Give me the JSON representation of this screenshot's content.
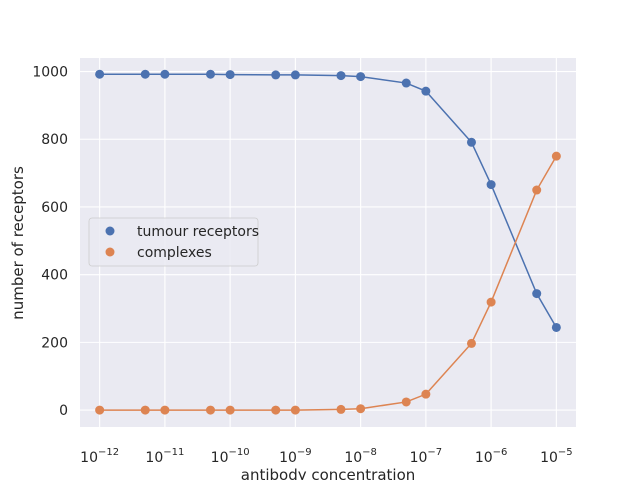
{
  "chart_data": {
    "type": "scatter",
    "title": "",
    "xlabel": "antibody concentration",
    "ylabel": "number of receptors",
    "xscale": "log",
    "xlim": [
      5e-13,
      2e-05
    ],
    "ylim": [
      -50,
      1040
    ],
    "grid": true,
    "legend_position": "center-left",
    "x_ticks": [
      {
        "value": 1e-12,
        "base": "10",
        "exp": "−12"
      },
      {
        "value": 1e-11,
        "base": "10",
        "exp": "−11"
      },
      {
        "value": 1e-10,
        "base": "10",
        "exp": "−10"
      },
      {
        "value": 1e-09,
        "base": "10",
        "exp": "−9"
      },
      {
        "value": 1e-08,
        "base": "10",
        "exp": "−8"
      },
      {
        "value": 1e-07,
        "base": "10",
        "exp": "−7"
      },
      {
        "value": 1e-06,
        "base": "10",
        "exp": "−6"
      },
      {
        "value": 1e-05,
        "base": "10",
        "exp": "−5"
      }
    ],
    "y_ticks": [
      0,
      200,
      400,
      600,
      800,
      1000
    ],
    "x": [
      1e-12,
      5e-12,
      1e-11,
      5e-11,
      1e-10,
      5e-10,
      1e-09,
      5e-09,
      1e-08,
      5e-08,
      1e-07,
      5e-07,
      1e-06,
      5e-06,
      1e-05
    ],
    "series": [
      {
        "name": "tumour receptors",
        "color": "#4c72b0",
        "values": [
          992,
          992,
          992,
          992,
          991,
          990,
          990,
          988,
          985,
          966,
          942,
          791,
          666,
          344,
          244
        ]
      },
      {
        "name": "complexes",
        "color": "#dd8452",
        "values": [
          0,
          0,
          0,
          0,
          0,
          0,
          0,
          2,
          4,
          24,
          47,
          197,
          319,
          650,
          750
        ]
      }
    ]
  }
}
